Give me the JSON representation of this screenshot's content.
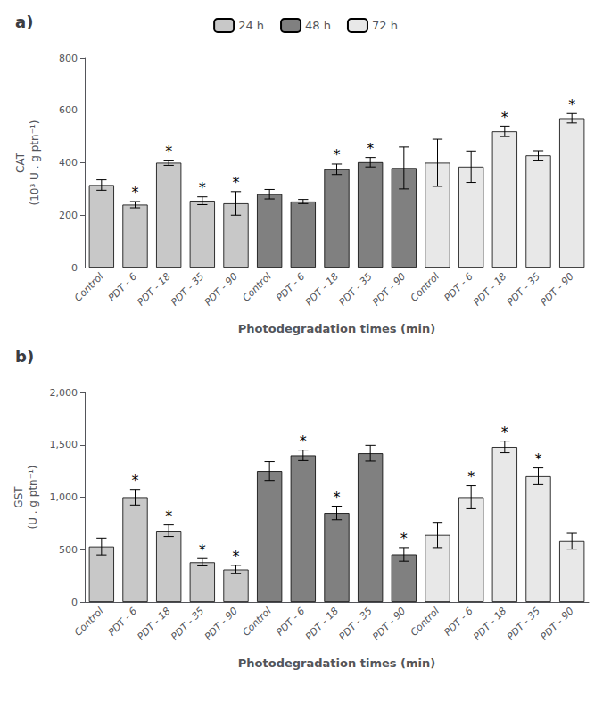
{
  "chart_data": [
    {
      "type": "bar",
      "title": "a)",
      "categories": [
        "Control",
        "PDT - 6",
        "PDT - 18",
        "PDT - 35",
        "PDT - 90",
        "Control",
        "PDT - 6",
        "PDT - 18",
        "PDT - 35",
        "PDT - 90",
        "Control",
        "PDT - 6",
        "PDT - 18",
        "PDT - 35",
        "PDT - 90"
      ],
      "x_label": "Photodegradation times (min)",
      "y_label": "CAT\n(10³ U . g ptn⁻¹)",
      "ylim": [
        0,
        800
      ],
      "yticks": [
        0,
        200,
        400,
        600,
        800
      ],
      "grid": false,
      "legend": "top",
      "edge_color": "#000000",
      "series": [
        {
          "name": "24 h",
          "color": "#c8c8c8",
          "values": [
            315,
            240,
            400,
            255,
            245,
            null,
            null,
            null,
            null,
            null,
            null,
            null,
            null,
            null,
            null
          ],
          "errors": [
            20,
            12,
            10,
            15,
            45,
            null,
            null,
            null,
            null,
            null,
            null,
            null,
            null,
            null,
            null
          ],
          "annotations": [
            null,
            "*",
            "*",
            "*",
            "*",
            null,
            null,
            null,
            null,
            null,
            null,
            null,
            null,
            null,
            null
          ]
        },
        {
          "name": "48 h",
          "color": "#808080",
          "values": [
            null,
            null,
            null,
            null,
            null,
            280,
            252,
            375,
            402,
            380,
            null,
            null,
            null,
            null,
            null
          ],
          "errors": [
            null,
            null,
            null,
            null,
            null,
            18,
            8,
            20,
            18,
            80,
            null,
            null,
            null,
            null,
            null
          ],
          "annotations": [
            null,
            null,
            null,
            null,
            null,
            null,
            null,
            "*",
            "*",
            null,
            null,
            null,
            null,
            null,
            null
          ]
        },
        {
          "name": "72 h",
          "color": "#e8e8e8",
          "values": [
            null,
            null,
            null,
            null,
            null,
            null,
            null,
            null,
            null,
            null,
            400,
            385,
            520,
            428,
            570
          ],
          "errors": [
            null,
            null,
            null,
            null,
            null,
            null,
            null,
            null,
            null,
            null,
            90,
            60,
            20,
            18,
            18
          ],
          "annotations": [
            null,
            null,
            null,
            null,
            null,
            null,
            null,
            null,
            null,
            null,
            null,
            null,
            "*",
            null,
            "*"
          ]
        }
      ]
    },
    {
      "type": "bar",
      "title": "b)",
      "categories": [
        "Control",
        "PDT - 6",
        "PDT - 18",
        "PDT - 35",
        "PDT - 90",
        "Control",
        "PDT - 6",
        "PDT - 18",
        "PDT - 35",
        "PDT - 90",
        "Control",
        "PDT - 6",
        "PDT - 18",
        "PDT - 35",
        "PDT - 90"
      ],
      "x_label": "Photodegradation times (min)",
      "y_label": "GST\n(U . g ptn⁻¹)",
      "ylim": [
        0,
        2000
      ],
      "yticks": [
        0,
        500,
        1000,
        1500,
        2000
      ],
      "grid": false,
      "edge_color": "#000000",
      "series": [
        {
          "name": "24 h",
          "color": "#c8c8c8",
          "values": [
            530,
            1000,
            680,
            380,
            310,
            null,
            null,
            null,
            null,
            null,
            null,
            null,
            null,
            null,
            null
          ],
          "errors": [
            80,
            75,
            55,
            35,
            40,
            null,
            null,
            null,
            null,
            null,
            null,
            null,
            null,
            null,
            null
          ],
          "annotations": [
            null,
            "*",
            "*",
            "*",
            "*",
            null,
            null,
            null,
            null,
            null,
            null,
            null,
            null,
            null,
            null
          ]
        },
        {
          "name": "48 h",
          "color": "#808080",
          "values": [
            null,
            null,
            null,
            null,
            null,
            1250,
            1400,
            850,
            1420,
            455,
            null,
            null,
            null,
            null,
            null
          ],
          "errors": [
            null,
            null,
            null,
            null,
            null,
            90,
            50,
            65,
            75,
            65,
            null,
            null,
            null,
            null,
            null
          ],
          "annotations": [
            null,
            null,
            null,
            null,
            null,
            null,
            "*",
            "*",
            null,
            "*",
            null,
            null,
            null,
            null,
            null
          ]
        },
        {
          "name": "72 h",
          "color": "#e8e8e8",
          "values": [
            null,
            null,
            null,
            null,
            null,
            null,
            null,
            null,
            null,
            null,
            640,
            1000,
            1480,
            1200,
            580
          ],
          "errors": [
            null,
            null,
            null,
            null,
            null,
            null,
            null,
            null,
            null,
            null,
            120,
            110,
            55,
            80,
            75
          ],
          "annotations": [
            null,
            null,
            null,
            null,
            null,
            null,
            null,
            null,
            null,
            null,
            null,
            "*",
            "*",
            "*",
            null
          ]
        }
      ]
    }
  ]
}
